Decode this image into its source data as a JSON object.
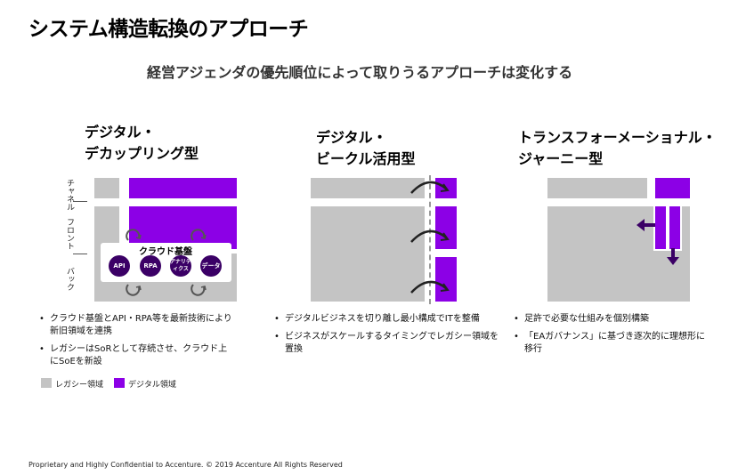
{
  "title": "システム構造転換のアプローチ",
  "subtitle": "経営アジェンダの優先順位によって取りうるアプローチは変化する",
  "columns": [
    {
      "heading_lines": [
        "デジタル・",
        "デカップリング型"
      ],
      "layer_labels": [
        "チャネル",
        "フロント",
        "バック"
      ],
      "cloud_label": "クラウド基盤",
      "circles": [
        "API",
        "RPA",
        "アナリティクス",
        "データ"
      ],
      "bullets": [
        "クラウド基盤とAPI・RPA等を最新技術により新旧領域を連携",
        "レガシーはSoRとして存続させ、クラウド上にSoEを新設"
      ]
    },
    {
      "heading_lines": [
        "デジタル・",
        "ビークル活用型"
      ],
      "bullets": [
        "デジタルビジネスを切り離し最小構成でITを整備",
        "ビジネスがスケールするタイミングでレガシー領域を置換"
      ]
    },
    {
      "heading_lines": [
        "トランスフォーメーショナル・",
        "ジャーニー型"
      ],
      "bullets": [
        "足許で必要な仕組みを個別構築",
        "「EAガバナンス」に基づき逐次的に理想形に移行"
      ]
    }
  ],
  "legend": {
    "legacy": "レガシー領域",
    "digital": "デジタル領域"
  },
  "colors": {
    "legacy": "#c4c4c4",
    "digital": "#8c00e6",
    "circle": "#3b0066"
  },
  "footer": "Proprietary and Highly Confidential to Accenture.   © 2019 Accenture All Rights Reserved"
}
